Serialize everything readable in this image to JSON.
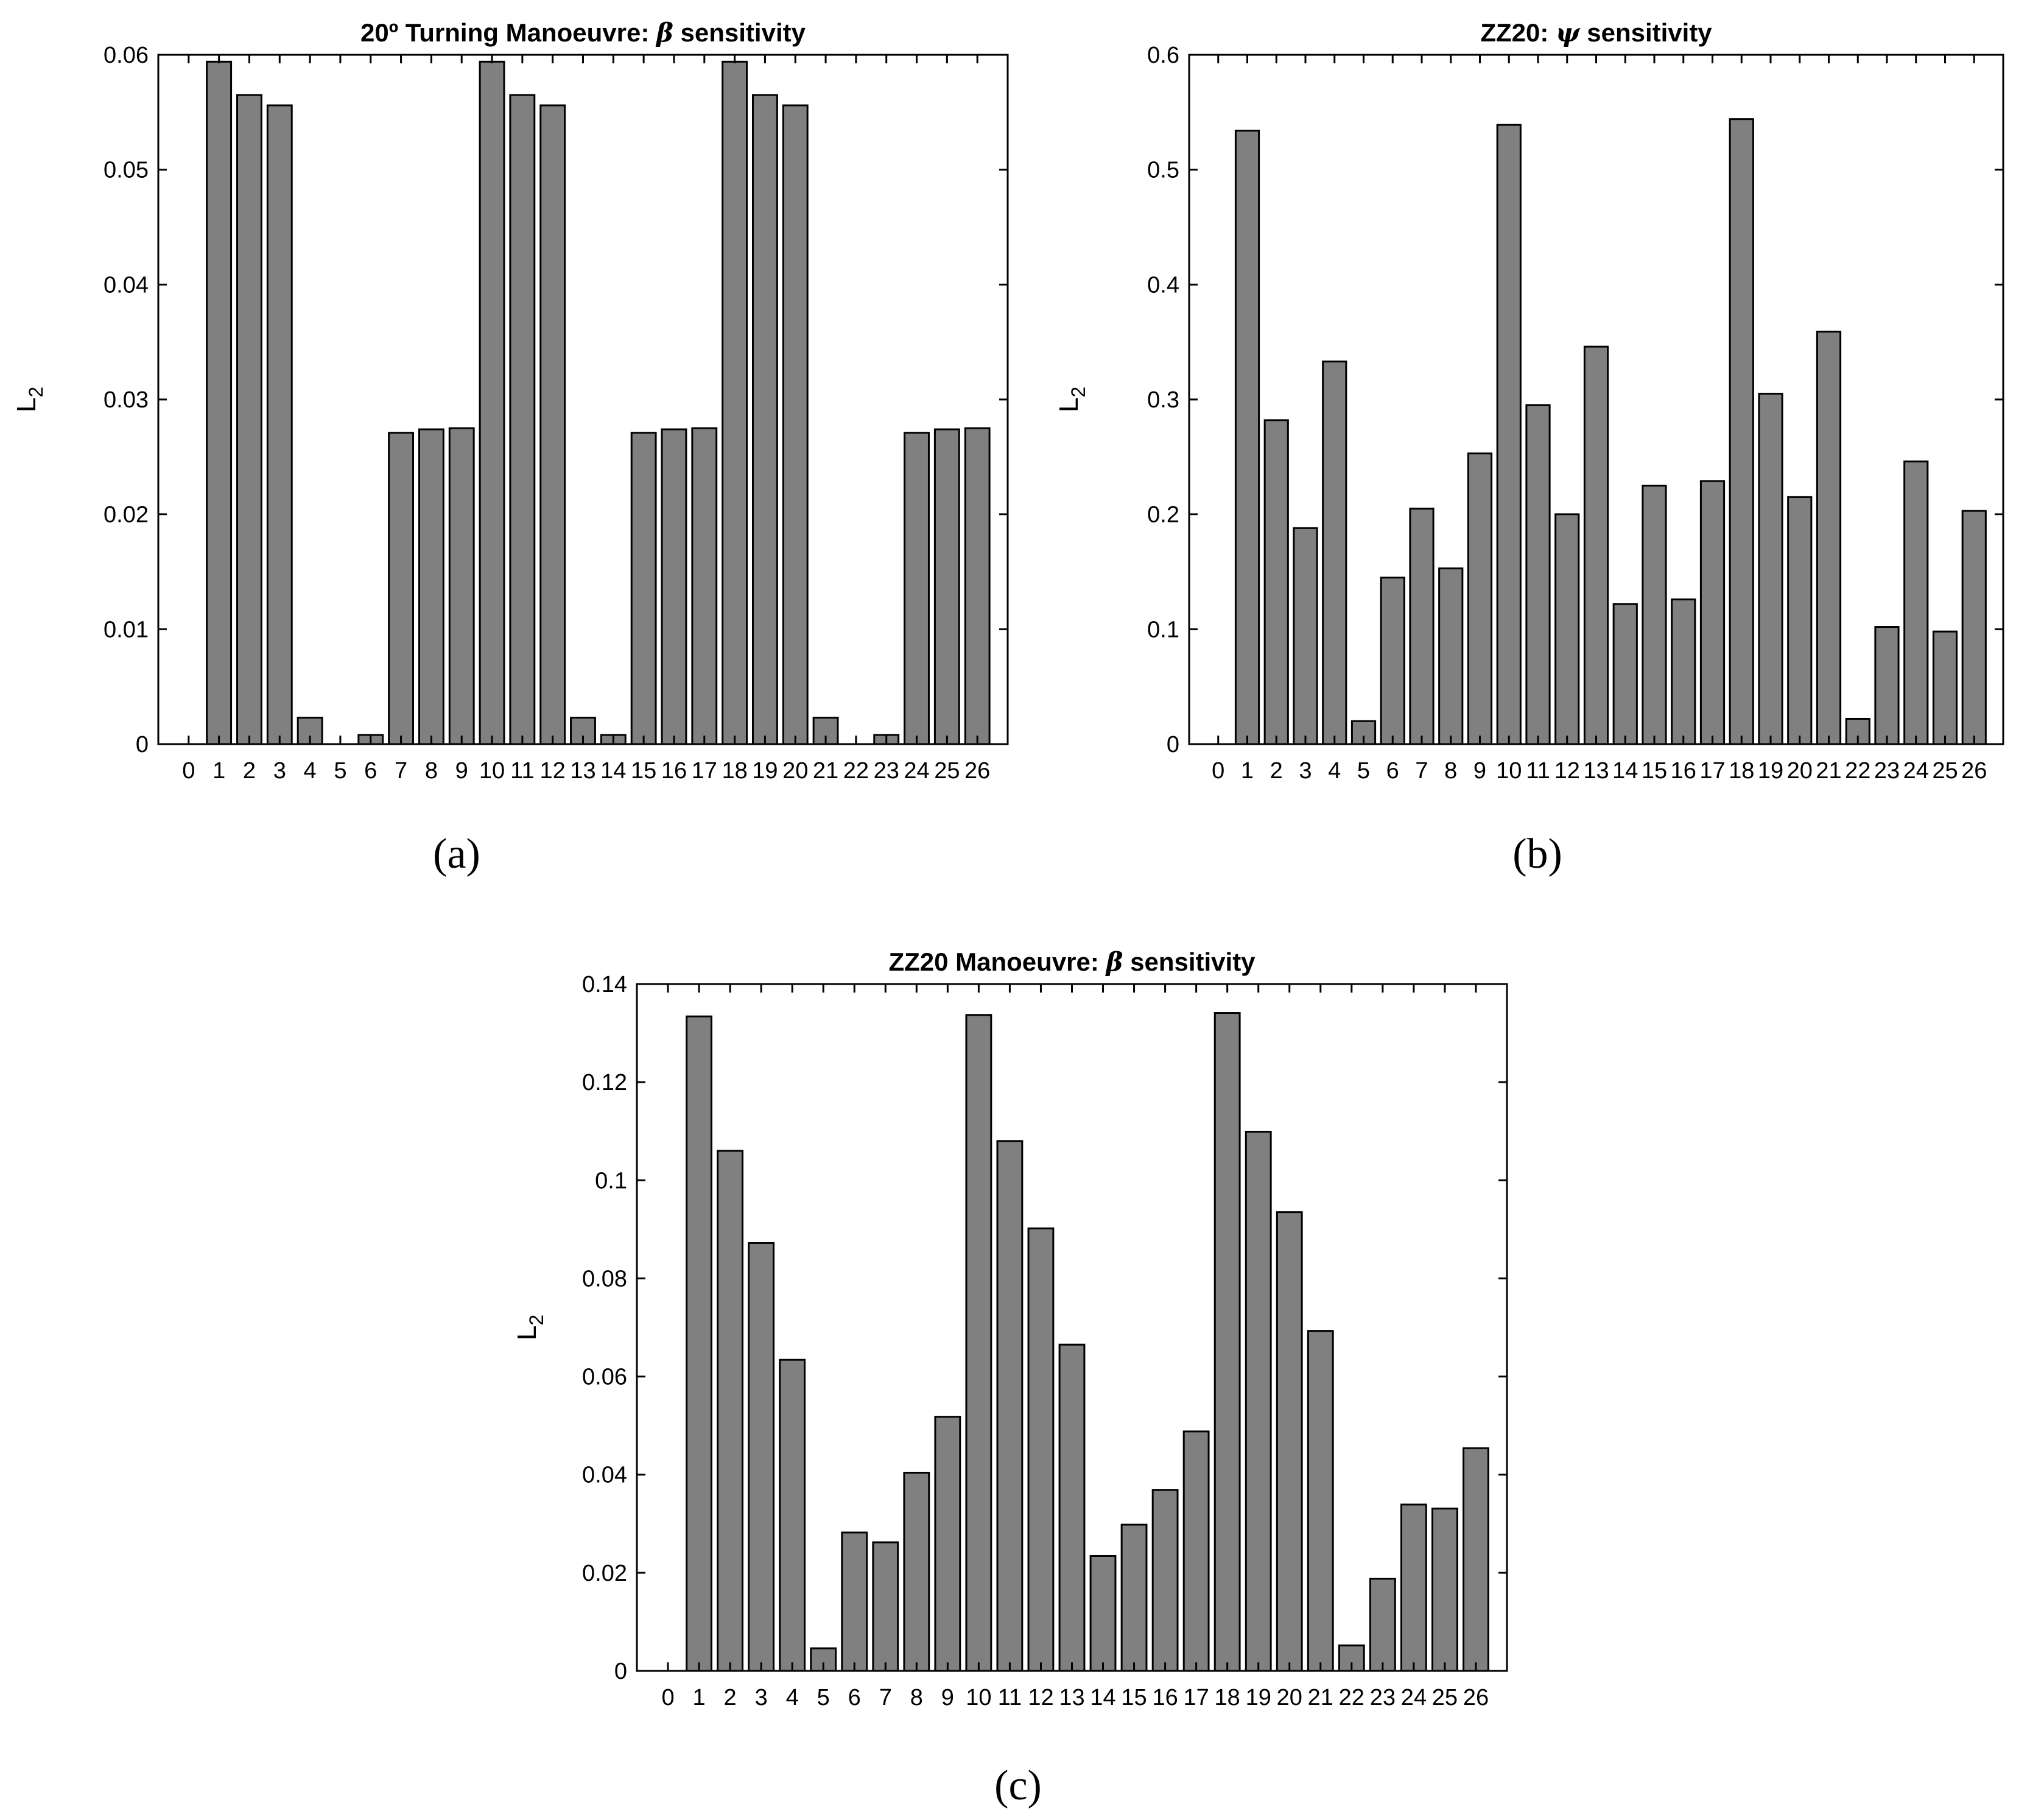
{
  "chart_data": [
    {
      "type": "bar",
      "panel_label": "(a)",
      "title": "20º Turning Manoeuvre: β sensitivity",
      "title_parts": {
        "prefix": "20º Turning Manoeuvre: ",
        "symbol": "β",
        "suffix": " sensitivity"
      },
      "xlabel": "",
      "ylabel": "L",
      "ylabel_subscript": "2",
      "categories": [
        "0",
        "1",
        "2",
        "3",
        "4",
        "5",
        "6",
        "7",
        "8",
        "9",
        "10",
        "11",
        "12",
        "13",
        "14",
        "15",
        "16",
        "17",
        "18",
        "19",
        "20",
        "21",
        "22",
        "23",
        "24",
        "25",
        "26"
      ],
      "values": [
        0,
        0.0594,
        0.0565,
        0.0556,
        0.0023,
        0,
        0.0008,
        0.0271,
        0.0274,
        0.0275,
        0.0594,
        0.0565,
        0.0556,
        0.0023,
        0.0008,
        0.0271,
        0.0274,
        0.0275,
        0.0594,
        0.0565,
        0.0556,
        0.0023,
        0,
        0.0008,
        0.0271,
        0.0274,
        0.0275
      ],
      "ylim": [
        0,
        0.06
      ],
      "yticks": [
        0,
        0.01,
        0.02,
        0.03,
        0.04,
        0.05,
        0.06
      ],
      "ytick_labels": [
        "0",
        "0.01",
        "0.02",
        "0.03",
        "0.04",
        "0.05",
        "0.06"
      ],
      "grid": false
    },
    {
      "type": "bar",
      "panel_label": "(b)",
      "title": "ZZ20: ψ sensitivity",
      "title_parts": {
        "prefix": "ZZ20: ",
        "symbol": "ψ",
        "suffix": " sensitivity"
      },
      "xlabel": "",
      "ylabel": "L",
      "ylabel_subscript": "2",
      "categories": [
        "0",
        "1",
        "2",
        "3",
        "4",
        "5",
        "6",
        "7",
        "8",
        "9",
        "10",
        "11",
        "12",
        "13",
        "14",
        "15",
        "16",
        "17",
        "18",
        "19",
        "20",
        "21",
        "22",
        "23",
        "24",
        "25",
        "26"
      ],
      "values": [
        0,
        0.534,
        0.282,
        0.188,
        0.333,
        0.02,
        0.145,
        0.205,
        0.153,
        0.253,
        0.539,
        0.295,
        0.2,
        0.346,
        0.122,
        0.225,
        0.126,
        0.229,
        0.544,
        0.305,
        0.215,
        0.359,
        0.022,
        0.102,
        0.246,
        0.098,
        0.203
      ],
      "ylim": [
        0,
        0.6
      ],
      "yticks": [
        0,
        0.1,
        0.2,
        0.3,
        0.4,
        0.5,
        0.6
      ],
      "ytick_labels": [
        "0",
        "0.1",
        "0.2",
        "0.3",
        "0.4",
        "0.5",
        "0.6"
      ],
      "grid": false
    },
    {
      "type": "bar",
      "panel_label": "(c)",
      "title": "ZZ20 Manoeuvre: β sensitivity",
      "title_parts": {
        "prefix": "ZZ20 Manoeuvre: ",
        "symbol": "β",
        "suffix": " sensitivity"
      },
      "xlabel": "",
      "ylabel": "L",
      "ylabel_subscript": "2",
      "categories": [
        "0",
        "1",
        "2",
        "3",
        "4",
        "5",
        "6",
        "7",
        "8",
        "9",
        "10",
        "11",
        "12",
        "13",
        "14",
        "15",
        "16",
        "17",
        "18",
        "19",
        "20",
        "21",
        "22",
        "23",
        "24",
        "25",
        "26"
      ],
      "values": [
        0,
        0.1334,
        0.106,
        0.0872,
        0.0634,
        0.0046,
        0.0282,
        0.0262,
        0.0404,
        0.0518,
        0.1337,
        0.108,
        0.0902,
        0.0665,
        0.0234,
        0.0298,
        0.0369,
        0.0488,
        0.1341,
        0.1099,
        0.0935,
        0.0693,
        0.0052,
        0.0188,
        0.0339,
        0.0331,
        0.0454
      ],
      "ylim": [
        0,
        0.14
      ],
      "yticks": [
        0,
        0.02,
        0.04,
        0.06,
        0.08,
        0.1,
        0.12,
        0.14
      ],
      "ytick_labels": [
        "0",
        "0.02",
        "0.04",
        "0.06",
        "0.08",
        "0.1",
        "0.12",
        "0.14"
      ],
      "grid": false
    }
  ]
}
